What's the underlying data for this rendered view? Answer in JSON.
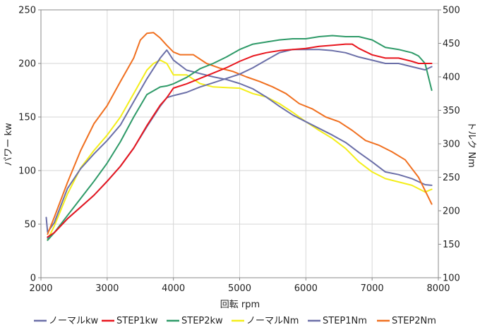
{
  "chart_data": {
    "type": "line",
    "xlabel": "回転 rpm",
    "ylabel_left": "パワー kw",
    "ylabel_right": "トルク Nm",
    "xlim": [
      2000,
      8000
    ],
    "ylim_left": [
      0,
      250
    ],
    "ylim_right": [
      100,
      500
    ],
    "x_ticks": [
      "2000",
      "3000",
      "4000",
      "5000",
      "6000",
      "7000",
      "8000"
    ],
    "y_ticks_left": [
      "0",
      "50",
      "100",
      "150",
      "200",
      "250"
    ],
    "y_ticks_right": [
      "100",
      "150",
      "200",
      "250",
      "300",
      "350",
      "400",
      "450",
      "500"
    ],
    "grid": true,
    "legend_position": "bottom",
    "series": [
      {
        "name": "ノーマルkw",
        "axis": "left",
        "color": "#6b6fa8",
        "x": [
          2100,
          2200,
          2400,
          2600,
          2800,
          3000,
          3200,
          3400,
          3600,
          3800,
          3900,
          4000,
          4200,
          4400,
          4600,
          4800,
          5000,
          5200,
          5400,
          5600,
          5800,
          6000,
          6200,
          6400,
          6600,
          6800,
          7000,
          7200,
          7400,
          7600,
          7800,
          7900
        ],
        "y": [
          37,
          42,
          55,
          66,
          77,
          90,
          104,
          121,
          141,
          160,
          168,
          170,
          173,
          178,
          182,
          186,
          190,
          196,
          203,
          210,
          213,
          213,
          213,
          212,
          210,
          206,
          203,
          200,
          200,
          197,
          194,
          197
        ]
      },
      {
        "name": "STEP1kw",
        "axis": "left",
        "color": "#e8161e",
        "x": [
          2100,
          2200,
          2400,
          2600,
          2800,
          3000,
          3200,
          3400,
          3600,
          3800,
          3900,
          4000,
          4200,
          4400,
          4600,
          4800,
          5000,
          5200,
          5400,
          5600,
          5800,
          6000,
          6200,
          6400,
          6600,
          6700,
          6800,
          7000,
          7200,
          7400,
          7600,
          7700,
          7900
        ],
        "y": [
          38,
          42,
          55,
          66,
          77,
          90,
          104,
          121,
          142,
          161,
          168,
          177,
          181,
          186,
          191,
          196,
          202,
          207,
          210,
          212,
          213,
          214,
          216,
          217,
          218,
          218,
          214,
          208,
          205,
          205,
          202,
          200,
          200
        ]
      },
      {
        "name": "STEP2kw",
        "axis": "left",
        "color": "#2e9a68",
        "x": [
          2100,
          2200,
          2400,
          2600,
          2800,
          3000,
          3200,
          3400,
          3600,
          3800,
          3900,
          4000,
          4200,
          4400,
          4600,
          4800,
          5000,
          5200,
          5400,
          5600,
          5800,
          6000,
          6200,
          6400,
          6600,
          6800,
          7000,
          7200,
          7400,
          7600,
          7700,
          7800,
          7900
        ],
        "y": [
          35,
          42,
          58,
          74,
          90,
          107,
          127,
          150,
          171,
          178,
          179,
          181,
          187,
          195,
          200,
          206,
          213,
          218,
          220,
          222,
          223,
          223,
          225,
          226,
          225,
          225,
          222,
          215,
          213,
          210,
          207,
          200,
          175
        ]
      },
      {
        "name": "ノーマルNm",
        "axis": "right",
        "color": "#f4ee1a",
        "x": [
          2100,
          2200,
          2400,
          2600,
          2800,
          3000,
          3200,
          3400,
          3600,
          3700,
          3800,
          3900,
          4000,
          4200,
          4400,
          4600,
          4800,
          5000,
          5200,
          5400,
          5600,
          5800,
          6000,
          6200,
          6400,
          6600,
          6800,
          7000,
          7200,
          7400,
          7600,
          7800,
          7900
        ],
        "y": [
          157,
          177,
          225,
          264,
          290,
          313,
          340,
          375,
          410,
          420,
          425,
          420,
          403,
          403,
          390,
          385,
          384,
          383,
          375,
          370,
          360,
          347,
          333,
          320,
          308,
          293,
          273,
          258,
          248,
          243,
          238,
          228,
          232
        ]
      },
      {
        "name": "STEP1Nm",
        "axis": "right",
        "color": "#6b6fa8",
        "x": [
          2080,
          2100,
          2200,
          2400,
          2600,
          2800,
          3000,
          3200,
          3400,
          3600,
          3800,
          3900,
          4000,
          4200,
          4400,
          4600,
          4800,
          5000,
          5200,
          5400,
          5600,
          5800,
          6000,
          6200,
          6400,
          6600,
          6800,
          7000,
          7200,
          7400,
          7600,
          7800,
          7900
        ],
        "y": [
          190,
          168,
          182,
          233,
          263,
          285,
          305,
          328,
          363,
          397,
          428,
          440,
          425,
          410,
          405,
          400,
          396,
          390,
          382,
          370,
          356,
          343,
          333,
          323,
          313,
          302,
          287,
          273,
          258,
          254,
          248,
          239,
          238
        ]
      },
      {
        "name": "STEP2Nm",
        "axis": "right",
        "color": "#f07020",
        "x": [
          2100,
          2200,
          2400,
          2600,
          2800,
          3000,
          3200,
          3400,
          3500,
          3600,
          3700,
          3800,
          3900,
          4000,
          4100,
          4300,
          4500,
          4700,
          4900,
          5100,
          5300,
          5500,
          5700,
          5900,
          6100,
          6300,
          6500,
          6700,
          6900,
          7100,
          7300,
          7500,
          7700,
          7900
        ],
        "y": [
          165,
          190,
          242,
          290,
          330,
          357,
          393,
          428,
          455,
          465,
          466,
          458,
          447,
          437,
          433,
          433,
          420,
          413,
          408,
          400,
          393,
          385,
          375,
          360,
          352,
          340,
          333,
          320,
          305,
          298,
          288,
          276,
          250,
          210
        ]
      }
    ]
  }
}
